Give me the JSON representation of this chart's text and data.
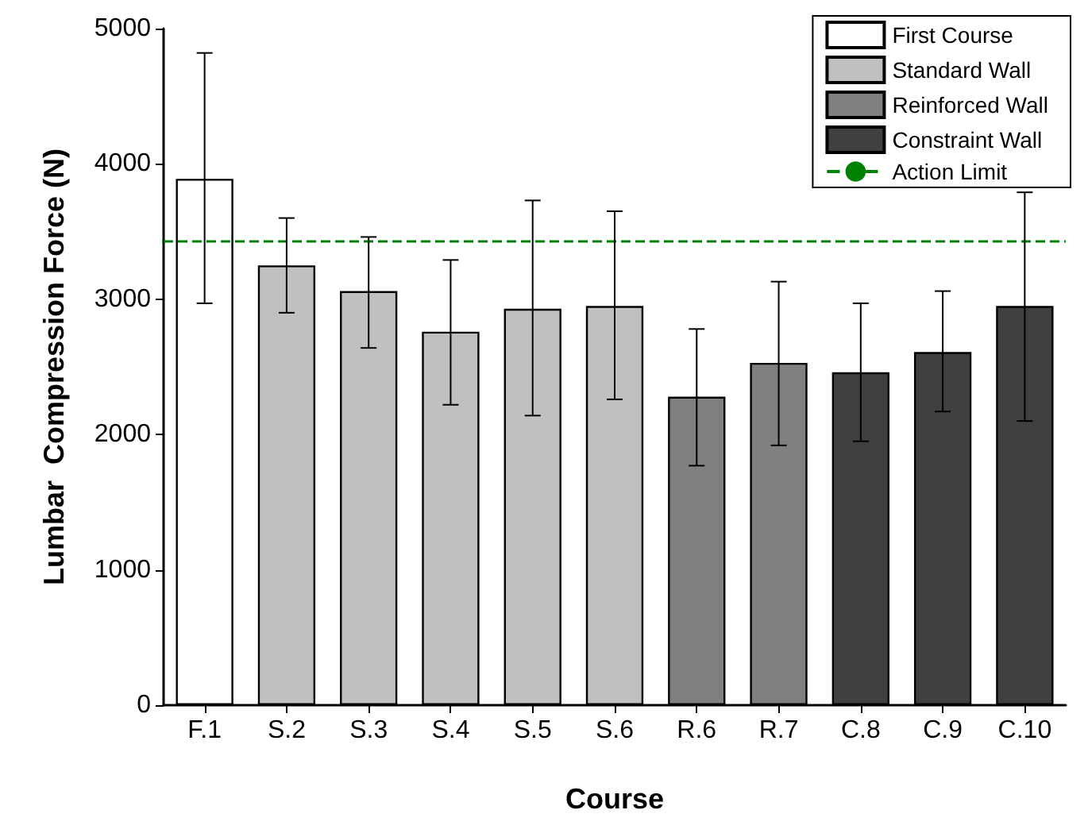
{
  "chart_data": {
    "type": "bar",
    "xlabel": "Course",
    "ylabel": "Lumbar  Compression Force (N)",
    "categories": [
      "F.1",
      "S.2",
      "S.3",
      "S.4",
      "S.5",
      "S.6",
      "R.6",
      "R.7",
      "C.8",
      "C.9",
      "C.10"
    ],
    "series": [
      {
        "name": "First Course",
        "color": "#ffffff",
        "values": [
          3890,
          null,
          null,
          null,
          null,
          null,
          null,
          null,
          null,
          null,
          null
        ],
        "errors": [
          [
            2970,
            4820
          ],
          null,
          null,
          null,
          null,
          null,
          null,
          null,
          null,
          null,
          null
        ]
      },
      {
        "name": "Standard Wall",
        "color": "#c0c0c0",
        "values": [
          null,
          3250,
          3060,
          2760,
          2930,
          2950,
          null,
          null,
          null,
          null,
          null
        ],
        "errors": [
          null,
          [
            2900,
            3600
          ],
          [
            2640,
            3460
          ],
          [
            2220,
            3290
          ],
          [
            2140,
            3730
          ],
          [
            2260,
            3650
          ],
          null,
          null,
          null,
          null,
          null
        ]
      },
      {
        "name": "Reinforced Wall",
        "color": "#808080",
        "values": [
          null,
          null,
          null,
          null,
          null,
          null,
          2280,
          2530,
          null,
          null,
          null
        ],
        "errors": [
          null,
          null,
          null,
          null,
          null,
          null,
          [
            1770,
            2780
          ],
          [
            1920,
            3130
          ],
          null,
          null,
          null
        ]
      },
      {
        "name": "Constraint Wall",
        "color": "#404040",
        "values": [
          null,
          null,
          null,
          null,
          null,
          null,
          null,
          null,
          2460,
          2610,
          2950
        ],
        "errors": [
          null,
          null,
          null,
          null,
          null,
          null,
          null,
          null,
          [
            1950,
            2970
          ],
          [
            2170,
            3060
          ],
          [
            2100,
            3790
          ]
        ]
      }
    ],
    "ref_lines": [
      {
        "axis": "y",
        "value": 3430,
        "label": "Action Limit",
        "color": "#008000",
        "line_style": "dashed"
      }
    ],
    "ylim": [
      0,
      5000
    ],
    "yticks": [
      0,
      1000,
      2000,
      3000,
      4000,
      5000
    ],
    "grid": false,
    "legend": "top right"
  }
}
